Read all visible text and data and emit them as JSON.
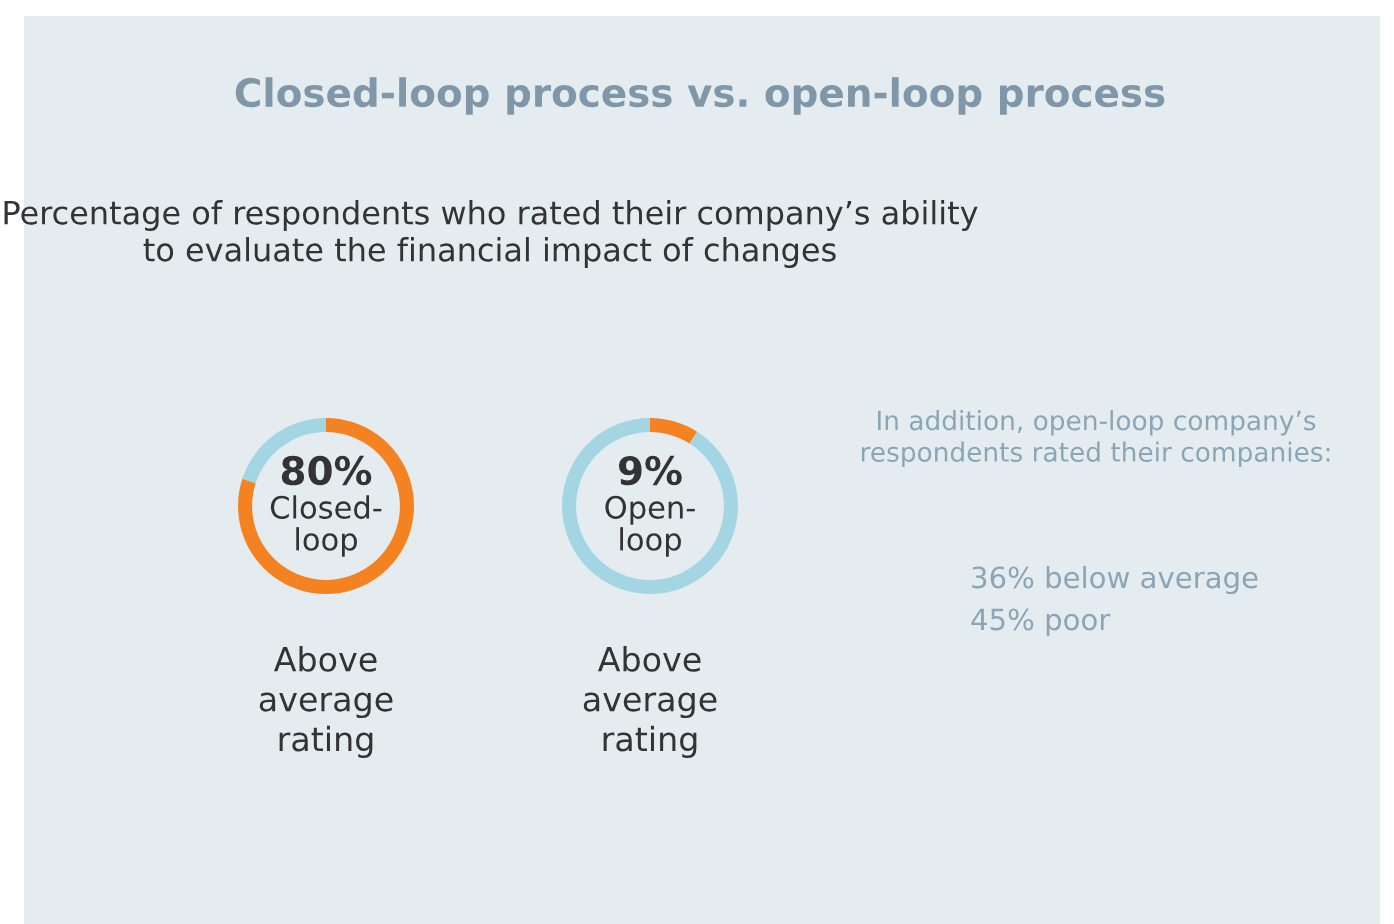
{
  "chart_data": [
    {
      "type": "donut",
      "title": "Closed-loop process vs. open-loop process",
      "subtitle": "Percentage of respondents who rated their company’s ability to evaluate the financial impact of changes",
      "categories": [
        "Closed-loop",
        null
      ],
      "values": [
        80,
        20
      ],
      "colors": [
        "#f58220",
        "#a3d6e2"
      ],
      "value_labels": [
        "80%",
        null
      ],
      "annotations": [
        "Above average rating"
      ]
    },
    {
      "type": "donut",
      "categories": [
        "Open-loop",
        null
      ],
      "values": [
        9,
        91
      ],
      "colors": [
        "#f58220",
        "#a3d6e2"
      ],
      "value_labels": [
        "9%",
        null
      ],
      "annotations": [
        "Above average rating"
      ]
    },
    {
      "type": "other",
      "annotations": [
        "In addition, open-loop company’s respondents rated their companies:",
        "36% below average",
        "45% poor"
      ]
    }
  ]
}
